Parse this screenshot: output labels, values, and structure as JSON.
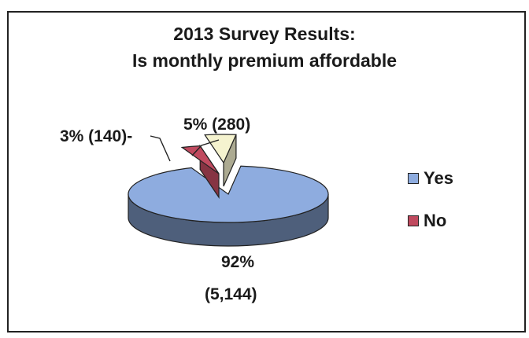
{
  "chart_data": {
    "type": "pie",
    "title": "2013 Survey Results:",
    "subtitle": "Is monthly premium affordable",
    "slices": [
      {
        "label": "Yes",
        "percent": 92,
        "count": 5144,
        "percent_text": "92%",
        "count_text": "(5,144)",
        "color": "#8eacdf"
      },
      {
        "label": "No",
        "percent": 3,
        "count": 140,
        "percent_text": "3%",
        "count_text": "(140)",
        "color": "#c04a5f"
      },
      {
        "label": "",
        "percent": 5,
        "count": 280,
        "percent_text": "5%",
        "count_text": "(280)",
        "color": "#f5f3cf"
      }
    ],
    "legend": {
      "position": "right",
      "entries": [
        "Yes",
        "No"
      ]
    },
    "label_texts": {
      "yes": "92%",
      "yes_count": "(5,144)",
      "no": "3% (140)-",
      "other": "5% (280)"
    }
  }
}
